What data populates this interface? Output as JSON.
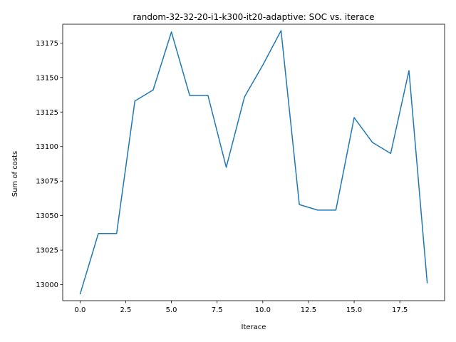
{
  "chart_data": {
    "type": "line",
    "title": "random-32-32-20-i1-k300-it20-adaptive: SOC vs. iterace",
    "xlabel": "Iterace",
    "ylabel": "Sum of costs",
    "xlim": [
      -0.95,
      19.95
    ],
    "ylim": [
      12988.4,
      13188.6
    ],
    "xticks": [
      0.0,
      2.5,
      5.0,
      7.5,
      10.0,
      12.5,
      15.0,
      17.5
    ],
    "xtick_labels": [
      "0.0",
      "2.5",
      "5.0",
      "7.5",
      "10.0",
      "12.5",
      "15.0",
      "17.5"
    ],
    "yticks": [
      13000,
      13025,
      13050,
      13075,
      13100,
      13125,
      13150,
      13175
    ],
    "ytick_labels": [
      "13000",
      "13025",
      "13050",
      "13075",
      "13100",
      "13125",
      "13150",
      "13175"
    ],
    "grid": false,
    "line_color": "#1f77b4",
    "series": [
      {
        "x": [
          0,
          1,
          2,
          3,
          4,
          5,
          6,
          7,
          8,
          9,
          10,
          11,
          12,
          13,
          14,
          15,
          16,
          17,
          18,
          19
        ],
        "values": [
          12993,
          13037,
          13037,
          13133,
          13141,
          13183,
          13137,
          13137,
          13085,
          13136,
          13159,
          13184,
          13058,
          13054,
          13054,
          13121,
          13103,
          13095,
          13155,
          13001
        ]
      }
    ]
  }
}
